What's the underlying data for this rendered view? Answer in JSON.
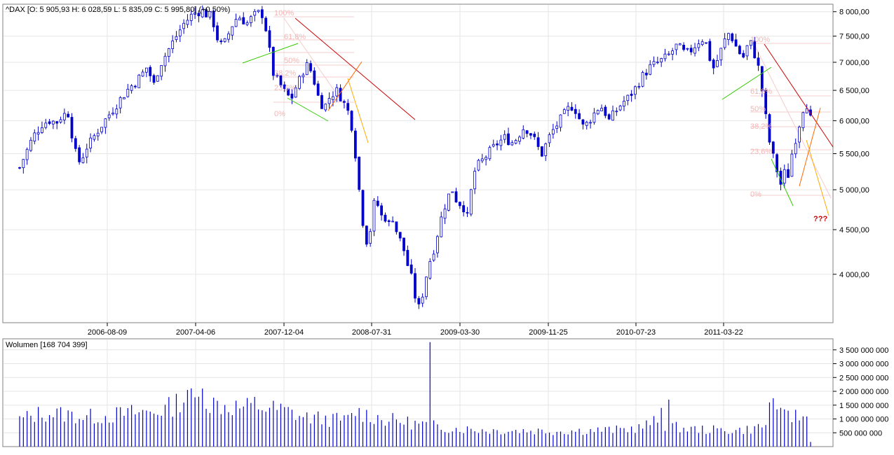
{
  "chart_data": [
    {
      "type": "candlestick",
      "title": "^DAX [O: 5 905,93  H: 6 028,59  L: 5 835,09  C: 5 995,80] (+0,50%)",
      "y_scale": "log",
      "ylim": [
        3520,
        8160
      ],
      "y_ticks": [
        {
          "value": 8000,
          "label": "8 000,00"
        },
        {
          "value": 7500,
          "label": "7 500,00"
        },
        {
          "value": 7000,
          "label": "7 000,00"
        },
        {
          "value": 6500,
          "label": "6 500,00"
        },
        {
          "value": 6000,
          "label": "6 000,00"
        },
        {
          "value": 5500,
          "label": "5 500,00"
        },
        {
          "value": 5000,
          "label": "5 000,00"
        },
        {
          "value": 4500,
          "label": "4 500,00"
        },
        {
          "value": 4000,
          "label": "4 000,00"
        }
      ],
      "x_ticks": [
        "2006-08-09",
        "2007-04-06",
        "2007-12-04",
        "2008-07-31",
        "2009-03-30",
        "2009-11-25",
        "2010-07-23",
        "2011-03-22"
      ],
      "grid": true,
      "up_color": "#ffffff",
      "down_color": "#0000cc",
      "wick_color": "#0000cc",
      "close_path": [
        [
          0,
          5300
        ],
        [
          6,
          5450
        ],
        [
          12,
          5600
        ],
        [
          18,
          5750
        ],
        [
          24,
          5850
        ],
        [
          30,
          5950
        ],
        [
          36,
          5980
        ],
        [
          42,
          6020
        ],
        [
          48,
          5950
        ],
        [
          54,
          6050
        ],
        [
          60,
          6100
        ],
        [
          66,
          6120
        ],
        [
          70,
          5800
        ],
        [
          74,
          5550
        ],
        [
          78,
          5380
        ],
        [
          82,
          5400
        ],
        [
          86,
          5500
        ],
        [
          90,
          5600
        ],
        [
          94,
          5650
        ],
        [
          98,
          5720
        ],
        [
          102,
          5800
        ],
        [
          108,
          5900
        ],
        [
          114,
          6000
        ],
        [
          120,
          6100
        ],
        [
          126,
          6200
        ],
        [
          132,
          6300
        ],
        [
          138,
          6400
        ],
        [
          144,
          6500
        ],
        [
          150,
          6580
        ],
        [
          156,
          6650
        ],
        [
          162,
          6750
        ],
        [
          168,
          6850
        ],
        [
          172,
          6950
        ],
        [
          176,
          6700
        ],
        [
          180,
          6600
        ],
        [
          184,
          6800
        ],
        [
          190,
          7000
        ],
        [
          196,
          7150
        ],
        [
          202,
          7300
        ],
        [
          208,
          7450
        ],
        [
          214,
          7600
        ],
        [
          220,
          7750
        ],
        [
          226,
          7850
        ],
        [
          232,
          7950
        ],
        [
          238,
          8000
        ],
        [
          244,
          8020
        ],
        [
          250,
          7950
        ],
        [
          256,
          7900
        ],
        [
          260,
          7750
        ],
        [
          264,
          7500
        ],
        [
          268,
          7350
        ],
        [
          272,
          7300
        ],
        [
          276,
          7400
        ],
        [
          280,
          7550
        ],
        [
          284,
          7700
        ],
        [
          288,
          7800
        ],
        [
          292,
          7900
        ],
        [
          296,
          7880
        ],
        [
          300,
          7820
        ],
        [
          304,
          7750
        ],
        [
          308,
          7800
        ],
        [
          312,
          7900
        ],
        [
          318,
          7950
        ],
        [
          324,
          8000
        ],
        [
          328,
          7800
        ],
        [
          332,
          7500
        ],
        [
          336,
          7100
        ],
        [
          340,
          6800
        ],
        [
          344,
          6700
        ],
        [
          348,
          6600
        ],
        [
          352,
          6550
        ],
        [
          356,
          6450
        ],
        [
          360,
          6400
        ],
        [
          364,
          6350
        ],
        [
          368,
          6500
        ],
        [
          372,
          6600
        ],
        [
          376,
          6700
        ],
        [
          380,
          6850
        ],
        [
          384,
          6950
        ],
        [
          388,
          6900
        ],
        [
          392,
          6800
        ],
        [
          396,
          6600
        ],
        [
          400,
          6400
        ],
        [
          404,
          6300
        ],
        [
          408,
          6200
        ],
        [
          412,
          6300
        ],
        [
          416,
          6400
        ],
        [
          420,
          6450
        ],
        [
          424,
          6500
        ],
        [
          428,
          6450
        ],
        [
          432,
          6350
        ],
        [
          436,
          6250
        ],
        [
          440,
          6150
        ],
        [
          444,
          6000
        ],
        [
          448,
          5700
        ],
        [
          452,
          5300
        ],
        [
          456,
          4900
        ],
        [
          460,
          4600
        ],
        [
          464,
          4400
        ],
        [
          468,
          4300
        ],
        [
          472,
          4700
        ],
        [
          476,
          4850
        ],
        [
          480,
          4800
        ],
        [
          484,
          4650
        ],
        [
          488,
          4700
        ],
        [
          492,
          4600
        ],
        [
          496,
          4550
        ],
        [
          500,
          4650
        ],
        [
          504,
          4500
        ],
        [
          508,
          4450
        ],
        [
          512,
          4300
        ],
        [
          516,
          4250
        ],
        [
          520,
          4100
        ],
        [
          524,
          4000
        ],
        [
          528,
          3850
        ],
        [
          532,
          3700
        ],
        [
          536,
          3650
        ],
        [
          540,
          3800
        ],
        [
          544,
          3950
        ],
        [
          548,
          4100
        ],
        [
          552,
          4200
        ],
        [
          556,
          4300
        ],
        [
          560,
          4450
        ],
        [
          564,
          4600
        ],
        [
          568,
          4750
        ],
        [
          572,
          4850
        ],
        [
          576,
          4950
        ],
        [
          580,
          5000
        ],
        [
          584,
          4900
        ],
        [
          588,
          4800
        ],
        [
          592,
          4850
        ],
        [
          596,
          4750
        ],
        [
          600,
          4650
        ],
        [
          604,
          4900
        ],
        [
          608,
          5200
        ],
        [
          612,
          5300
        ],
        [
          616,
          5350
        ],
        [
          620,
          5400
        ],
        [
          624,
          5450
        ],
        [
          628,
          5500
        ],
        [
          632,
          5550
        ],
        [
          636,
          5600
        ],
        [
          640,
          5650
        ],
        [
          646,
          5700
        ],
        [
          652,
          5750
        ],
        [
          658,
          5650
        ],
        [
          664,
          5700
        ],
        [
          670,
          5800
        ],
        [
          676,
          5900
        ],
        [
          682,
          5850
        ],
        [
          688,
          5750
        ],
        [
          694,
          5600
        ],
        [
          700,
          5500
        ],
        [
          706,
          5650
        ],
        [
          712,
          5800
        ],
        [
          718,
          5900
        ],
        [
          724,
          6000
        ],
        [
          730,
          6100
        ],
        [
          736,
          6200
        ],
        [
          742,
          6250
        ],
        [
          748,
          6100
        ],
        [
          754,
          5900
        ],
        [
          760,
          5950
        ],
        [
          766,
          6050
        ],
        [
          772,
          6150
        ],
        [
          778,
          6250
        ],
        [
          784,
          6150
        ],
        [
          790,
          6000
        ],
        [
          796,
          6100
        ],
        [
          802,
          6200
        ],
        [
          808,
          6300
        ],
        [
          814,
          6350
        ],
        [
          820,
          6450
        ],
        [
          826,
          6550
        ],
        [
          832,
          6700
        ],
        [
          838,
          6800
        ],
        [
          844,
          6900
        ],
        [
          850,
          6950
        ],
        [
          856,
          7000
        ],
        [
          862,
          7050
        ],
        [
          868,
          7100
        ],
        [
          874,
          7200
        ],
        [
          880,
          7300
        ],
        [
          886,
          7250
        ],
        [
          892,
          7150
        ],
        [
          898,
          7200
        ],
        [
          904,
          7300
        ],
        [
          910,
          7400
        ],
        [
          916,
          7450
        ],
        [
          922,
          7300
        ],
        [
          926,
          7000
        ],
        [
          930,
          6900
        ],
        [
          934,
          7000
        ],
        [
          938,
          7150
        ],
        [
          942,
          7300
        ],
        [
          946,
          7450
        ],
        [
          950,
          7550
        ],
        [
          954,
          7500
        ],
        [
          958,
          7350
        ],
        [
          962,
          7250
        ],
        [
          966,
          7150
        ],
        [
          970,
          7100
        ],
        [
          974,
          7250
        ],
        [
          978,
          7400
        ],
        [
          982,
          7300
        ],
        [
          986,
          7100
        ],
        [
          990,
          6900
        ],
        [
          994,
          6600
        ],
        [
          998,
          6200
        ],
        [
          1002,
          5900
        ],
        [
          1006,
          5600
        ],
        [
          1010,
          5450
        ],
        [
          1014,
          5300
        ],
        [
          1018,
          5150
        ],
        [
          1022,
          5000
        ],
        [
          1026,
          5300
        ],
        [
          1030,
          5200
        ],
        [
          1034,
          5450
        ],
        [
          1038,
          5650
        ],
        [
          1042,
          5800
        ],
        [
          1046,
          6000
        ],
        [
          1050,
          6200
        ],
        [
          1054,
          6350
        ],
        [
          1058,
          6050
        ],
        [
          1062,
          6000
        ]
      ],
      "annotation_text": [
        {
          "label": "100%"
        },
        {
          "label": "61,8%"
        },
        {
          "label": "50%"
        },
        {
          "label": "38,2%"
        },
        {
          "label": "23,6%"
        },
        {
          "label": "0%"
        },
        {
          "label": "100%"
        },
        {
          "label": "61,8%"
        },
        {
          "label": "50%"
        },
        {
          "label": "38,2%"
        },
        {
          "label": "23,6%"
        },
        {
          "label": "0%"
        },
        {
          "label": "???"
        }
      ]
    },
    {
      "type": "bar",
      "title": "Wolumen [168 704 399]",
      "ylim": [
        0,
        3900000000
      ],
      "y_ticks": [
        {
          "value": 500000000,
          "label": "500 000 000"
        },
        {
          "value": 1000000000,
          "label": "1 000 000 000"
        },
        {
          "value": 1500000000,
          "label": "1 500 000 000"
        },
        {
          "value": 2000000000,
          "label": "2 000 000 000"
        },
        {
          "value": 2500000000,
          "label": "2 500 000 000"
        },
        {
          "value": 3000000000,
          "label": "3 000 000 000"
        },
        {
          "value": 3500000000,
          "label": "3 500 000 000"
        }
      ],
      "color": "#0000cc",
      "volume_path": [
        [
          0,
          1000000000
        ],
        [
          30,
          1250000000
        ],
        [
          60,
          1200000000
        ],
        [
          90,
          1100000000
        ],
        [
          120,
          1150000000
        ],
        [
          150,
          1250000000
        ],
        [
          180,
          1300000000
        ],
        [
          200,
          1450000000
        ],
        [
          220,
          1800000000
        ],
        [
          240,
          1700000000
        ],
        [
          260,
          1600000000
        ],
        [
          280,
          1500000000
        ],
        [
          300,
          1450000000
        ],
        [
          320,
          1500000000
        ],
        [
          340,
          1400000000
        ],
        [
          360,
          1300000000
        ],
        [
          380,
          1100000000
        ],
        [
          400,
          1050000000
        ],
        [
          420,
          1000000000
        ],
        [
          440,
          1000000000
        ],
        [
          450,
          1300000000
        ],
        [
          470,
          1150000000
        ],
        [
          490,
          1000000000
        ],
        [
          510,
          950000000
        ],
        [
          530,
          850000000
        ],
        [
          550,
          800000000
        ],
        [
          570,
          700000000
        ],
        [
          600,
          650000000
        ],
        [
          640,
          600000000
        ],
        [
          680,
          600000000
        ],
        [
          720,
          580000000
        ],
        [
          760,
          600000000
        ],
        [
          800,
          620000000
        ],
        [
          830,
          700000000
        ],
        [
          850,
          900000000
        ],
        [
          870,
          750000000
        ],
        [
          900,
          650000000
        ],
        [
          930,
          620000000
        ],
        [
          960,
          600000000
        ],
        [
          980,
          650000000
        ],
        [
          1000,
          800000000
        ],
        [
          1010,
          1100000000
        ],
        [
          1030,
          1150000000
        ],
        [
          1050,
          1100000000
        ],
        [
          1062,
          1000000000
        ]
      ],
      "volume_spikes": [
        [
          550,
          3780000000
        ],
        [
          868,
          1700000000
        ],
        [
          859,
          1400000000
        ],
        [
          1010,
          1750000000
        ],
        [
          1029,
          1300000000
        ],
        [
          224,
          2050000000
        ],
        [
          246,
          2100000000
        ],
        [
          315,
          1800000000
        ],
        [
          1003,
          1600000000
        ]
      ]
    }
  ]
}
